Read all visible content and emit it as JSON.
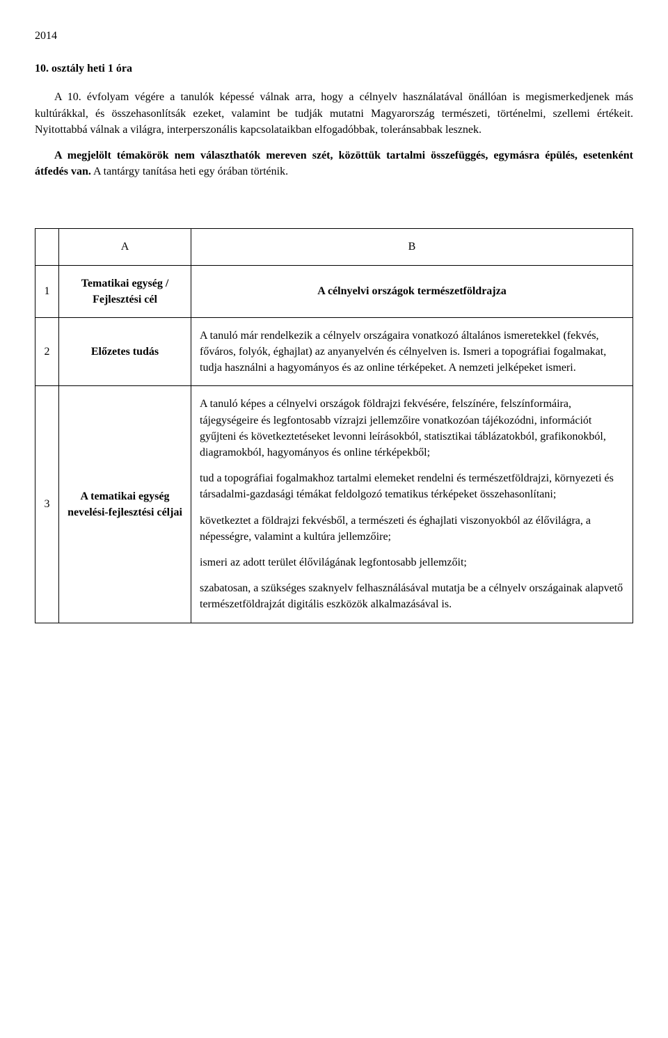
{
  "year": "2014",
  "heading": "10. osztály heti 1 óra",
  "para1": "A 10. évfolyam végére a tanulók képessé válnak arra, hogy a célnyelv használatával önállóan is megismerkedjenek más kultúrákkal, és összehasonlítsák ezeket, valamint be tudják mutatni Magyarország természeti, történelmi, szellemi értékeit. Nyitottabbá válnak a világra, interperszonális kapcsolataikban elfogadóbbak, toleránsabbak lesznek.",
  "para2_bold": "A megjelölt témakörök nem választhatók mereven szét, közöttük tartalmi összefüggés, egymásra épülés, esetenként átfedés van.",
  "para2_rest": " A tantárgy tanítása heti egy órában történik.",
  "table": {
    "header": {
      "a": "A",
      "b": "B"
    },
    "rows": [
      {
        "num": "1",
        "labelLine1": "Tematikai egység /",
        "labelLine2": "Fejlesztési cél",
        "bTitle": "A célnyelvi országok természetföldrajza"
      },
      {
        "num": "2",
        "label": "Előzetes tudás",
        "b": "A tanuló már rendelkezik a célnyelv országaira vonatkozó általános ismeretekkel (fekvés, főváros, folyók, éghajlat) az anyanyelvén és célnyelven is. Ismeri a topográfiai fogalmakat, tudja használni a hagyományos és az online térképeket. A nemzeti jelképeket ismeri."
      },
      {
        "num": "3",
        "label": "A tematikai egység nevelési-fejlesztési céljai",
        "b1": "A tanuló képes a célnyelvi országok földrajzi fekvésére, felszínére, felszínformáira, tájegységeire és legfontosabb vízrajzi jellemzőire vonatkozóan tájékozódni, információt gyűjteni és következtetéseket levonni leírásokból, statisztikai táblázatokból, grafikonokból, diagramokból, hagyományos és online térképekből;",
        "b2": "tud a topográfiai fogalmakhoz tartalmi elemeket rendelni és természetföldrajzi, környezeti és társadalmi-gazdasági témákat feldolgozó tematikus térképeket összehasonlítani;",
        "b3": "következtet a földrajzi fekvésből, a természeti és éghajlati viszonyokból az élővilágra, a népességre, valamint a kultúra jellemzőire;",
        "b4": "ismeri az adott terület élővilágának legfontosabb jellemzőit;",
        "b5": "szabatosan, a szükséges szaknyelv felhasználásával mutatja be a célnyelv országainak alapvető természetföldrajzát digitális eszközök alkalmazásával is."
      }
    ]
  }
}
